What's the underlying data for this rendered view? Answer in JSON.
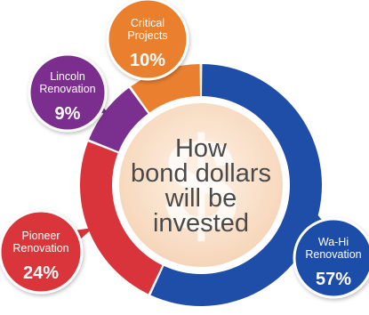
{
  "chart_data": {
    "type": "pie",
    "title": "How bond dollars will be invested",
    "title_lines": [
      "How",
      "bond dollars",
      "will be",
      "invested"
    ],
    "center_symbol": "$",
    "segments": [
      {
        "label_lines": [
          "Wa-Hi",
          "Renovation"
        ],
        "pct_text": "57%",
        "value": 57,
        "color": "#1f4ea8"
      },
      {
        "label_lines": [
          "Pioneer",
          "Renovation"
        ],
        "pct_text": "24%",
        "value": 24,
        "color": "#d9343b"
      },
      {
        "label_lines": [
          "Lincoln",
          "Renovation"
        ],
        "pct_text": "9%",
        "value": 9,
        "color": "#7b2f8e"
      },
      {
        "label_lines": [
          "Critical",
          "Projects"
        ],
        "pct_text": "10%",
        "value": 10,
        "color": "#ea7f2f"
      }
    ]
  }
}
